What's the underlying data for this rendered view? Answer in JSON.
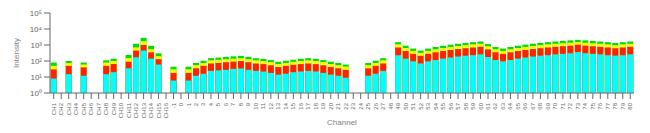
{
  "chart_data": {
    "type": "bar",
    "xlabel": "Channel",
    "ylabel": "Intensity",
    "log": "y",
    "grid": false,
    "categories": [
      "CH1",
      "CH2",
      "CH3",
      "CH4",
      "CH5",
      "CH6",
      "CH7",
      "CH8",
      "CH9",
      "CH10",
      "CH11",
      "CH12",
      "CH13",
      "CH14",
      "CH15",
      "CH16",
      "-1",
      "0",
      "1",
      "2",
      "3",
      "4",
      "5",
      "6",
      "7",
      "8",
      "9",
      "10",
      "11",
      "12",
      "13",
      "14",
      "15",
      "16",
      "17",
      "18",
      "19",
      "20",
      "21",
      "22",
      "23",
      "24",
      "25",
      "26",
      "27",
      "48",
      "49",
      "50",
      "51",
      "52",
      "53",
      "54",
      "55",
      "56",
      "57",
      "58",
      "59",
      "60",
      "61",
      "62",
      "63",
      "64",
      "65",
      "66",
      "67",
      "68",
      "69",
      "70",
      "71",
      "72",
      "73",
      "74",
      "75",
      "76",
      "77",
      "78",
      "79",
      "80"
    ],
    "ylim": [
      1,
      100000
    ],
    "yticks": [
      {
        "value": 1,
        "label": "10⁰"
      },
      {
        "value": 10,
        "label": "10¹"
      },
      {
        "value": 100,
        "label": "10²"
      },
      {
        "value": 1000,
        "label": "10³"
      },
      {
        "value": 10000,
        "label": "10⁴"
      },
      {
        "value": 100000,
        "label": "10⁵"
      }
    ],
    "series": [
      {
        "color": "#00dd00",
        "values": [
          80,
          1,
          100,
          1,
          80,
          1,
          1,
          110,
          140,
          1,
          240,
          1200,
          2800,
          900,
          300,
          1,
          44,
          1,
          44,
          76,
          104,
          150,
          164,
          180,
          196,
          210,
          180,
          150,
          136,
          114,
          90,
          104,
          120,
          136,
          150,
          136,
          114,
          90,
          76,
          60,
          1,
          1,
          76,
          104,
          150,
          1,
          1500,
          900,
          600,
          450,
          600,
          750,
          900,
          1050,
          1200,
          1350,
          1500,
          1650,
          1140,
          750,
          600,
          750,
          900,
          1050,
          1200,
          1350,
          1500,
          1650,
          1800,
          1950,
          2100,
          1950,
          1800,
          1650,
          1500,
          1350,
          1500,
          1650
        ]
      },
      {
        "color": "#ffff00",
        "values": [
          50,
          1,
          75,
          1,
          60,
          1,
          1,
          80,
          100,
          1,
          150,
          700,
          1700,
          550,
          200,
          1,
          30,
          1,
          30,
          55,
          75,
          110,
          120,
          130,
          140,
          150,
          130,
          110,
          100,
          85,
          65,
          75,
          90,
          100,
          110,
          100,
          85,
          65,
          55,
          45,
          1,
          1,
          55,
          75,
          110,
          1,
          1100,
          650,
          430,
          325,
          430,
          540,
          650,
          760,
          870,
          980,
          1100,
          1200,
          830,
          540,
          430,
          540,
          650,
          760,
          870,
          980,
          1100,
          1200,
          1300,
          1400,
          1550,
          1400,
          1300,
          1200,
          1100,
          980,
          1100,
          1200
        ]
      },
      {
        "color": "#ff2200",
        "values": [
          30,
          1,
          50,
          1,
          40,
          1,
          1,
          50,
          65,
          1,
          90,
          450,
          1000,
          350,
          130,
          1,
          18,
          1,
          18,
          35,
          50,
          70,
          76,
          84,
          92,
          100,
          84,
          70,
          64,
          54,
          42,
          50,
          58,
          64,
          70,
          64,
          54,
          42,
          35,
          28,
          1,
          1,
          35,
          50,
          70,
          1,
          700,
          420,
          280,
          210,
          280,
          350,
          420,
          490,
          560,
          630,
          700,
          770,
          532,
          350,
          280,
          350,
          420,
          490,
          560,
          630,
          700,
          770,
          840,
          910,
          1050,
          910,
          840,
          770,
          700,
          630,
          700,
          770
        ]
      },
      {
        "color": "#00ffff",
        "values": [
          8,
          1,
          15,
          1,
          12,
          1,
          1,
          15,
          20,
          1,
          35,
          170,
          450,
          140,
          60,
          1,
          6,
          1,
          6,
          12,
          16,
          24,
          26,
          28,
          32,
          34,
          28,
          24,
          22,
          18,
          14,
          16,
          20,
          22,
          24,
          22,
          18,
          14,
          12,
          9,
          1,
          1,
          12,
          16,
          24,
          1,
          230,
          140,
          95,
          70,
          95,
          115,
          140,
          165,
          190,
          215,
          230,
          260,
          178,
          115,
          95,
          115,
          140,
          165,
          190,
          215,
          230,
          260,
          280,
          305,
          360,
          305,
          280,
          260,
          230,
          215,
          230,
          260
        ]
      }
    ]
  }
}
